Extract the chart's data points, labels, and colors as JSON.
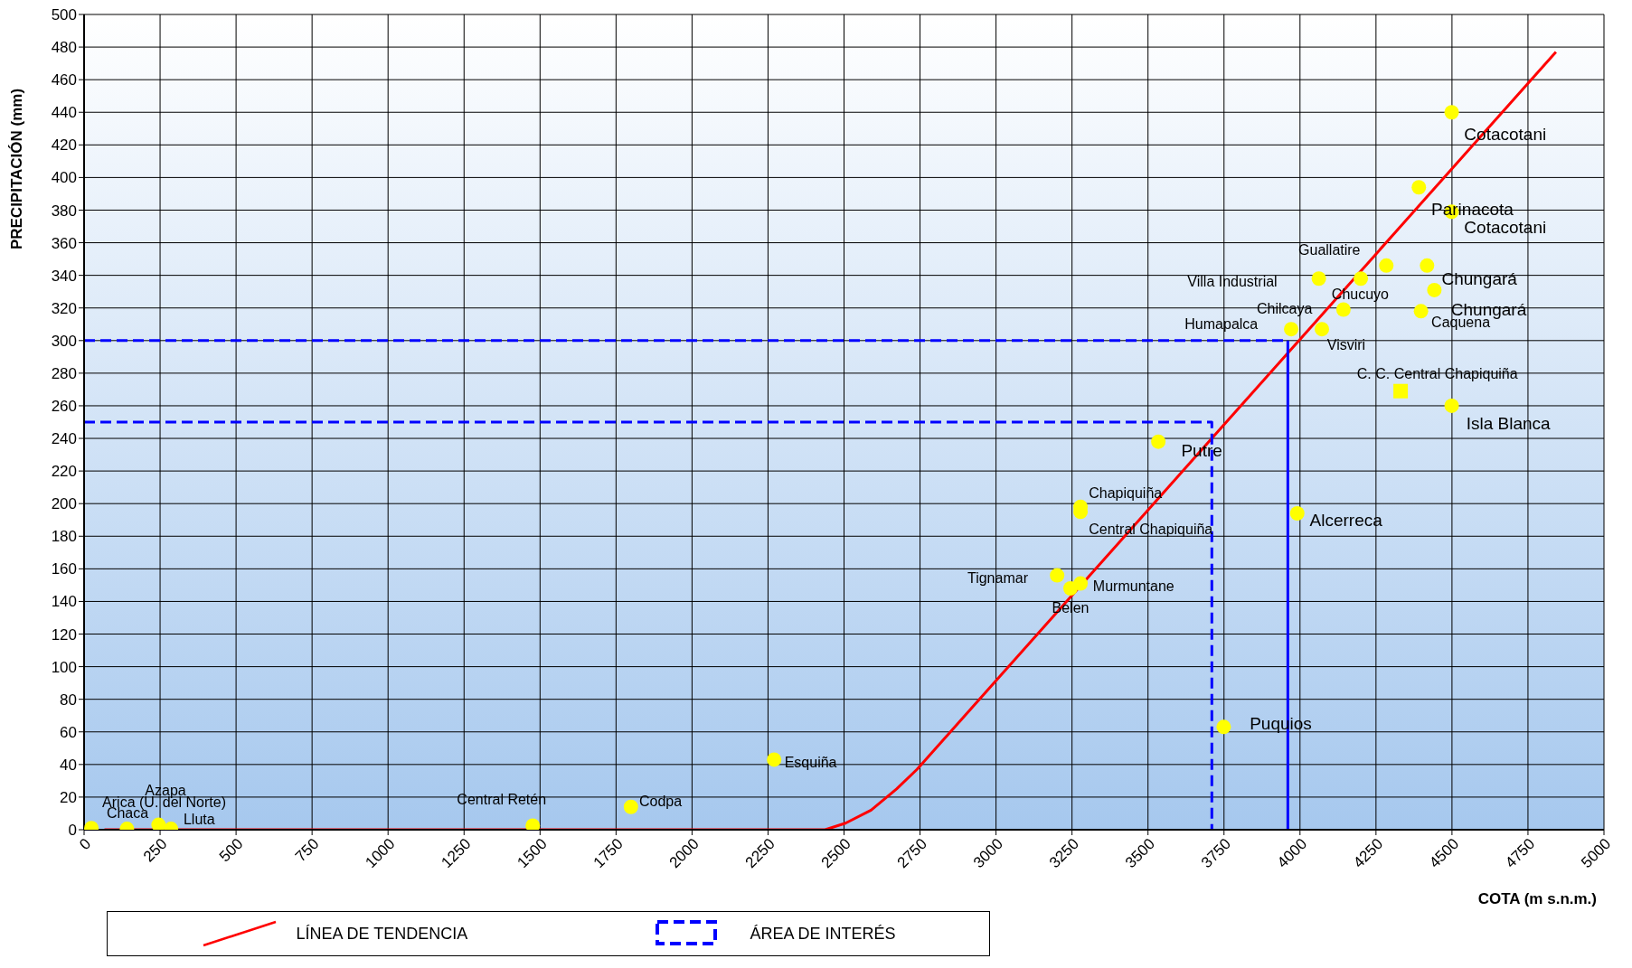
{
  "chart_data": {
    "type": "scatter",
    "xlabel": "COTA (m s.n.m.)",
    "ylabel": "PRECIPITACIÓN (mm)",
    "xlim": [
      0,
      5000
    ],
    "xticks": [
      0,
      250,
      500,
      750,
      1000,
      1250,
      1500,
      1750,
      2000,
      2250,
      2500,
      2750,
      3000,
      3250,
      3500,
      3750,
      4000,
      4250,
      4500,
      4750,
      5000
    ],
    "ylim": [
      0,
      500
    ],
    "yticks": [
      0,
      20,
      40,
      60,
      80,
      100,
      120,
      140,
      160,
      180,
      200,
      220,
      240,
      260,
      280,
      300,
      320,
      340,
      360,
      380,
      400,
      420,
      440,
      460,
      480,
      500
    ],
    "grid": true,
    "legend": "bottom",
    "series": [
      {
        "color": "#ffff00",
        "marker": "circle",
        "x": [
          4499,
          4391,
          4499,
          4284,
          4418,
          4200,
          4062,
          4442,
          4143,
          4398,
          3971,
          4072,
          4499,
          3534,
          3278,
          3278,
          3991,
          3201,
          3278,
          3245,
          3749,
          2270,
          1799,
          1476,
          24,
          141,
          245,
          286
        ],
        "values": [
          440,
          394,
          379,
          346,
          346,
          338,
          338,
          331,
          319,
          318,
          307,
          307,
          260,
          238,
          198,
          195,
          194,
          156,
          151,
          148,
          63,
          43,
          14,
          2.5,
          1,
          0.5,
          3,
          0.5
        ]
      },
      {
        "color": "#ffff00",
        "marker": "square",
        "x": [
          4331
        ],
        "values": [
          269
        ]
      },
      {
        "type": "line",
        "name": "LÍNEA DE TENDENCIA",
        "color": "#ff0000",
        "line_style": "solid",
        "x": [
          67,
          2310,
          2438,
          2505,
          2589,
          2673,
          2740,
          4842
        ],
        "values": [
          0,
          0,
          0,
          4,
          12,
          25,
          37,
          477
        ]
      },
      {
        "type": "line",
        "name": "ÁREA DE INTERÉS",
        "color": "#0000ff",
        "line_style": "dashed",
        "x": [
          0,
          3960
        ],
        "values": [
          300,
          300
        ]
      },
      {
        "type": "line",
        "color": "#0000ff",
        "line_style": "dashed",
        "x": [
          0,
          3710,
          3710
        ],
        "values": [
          250,
          250,
          0
        ]
      },
      {
        "type": "line",
        "color": "#0000ff",
        "line_style": "solid",
        "x": [
          3960,
          3960
        ],
        "values": [
          300,
          0
        ]
      }
    ],
    "annotations": [
      {
        "text": "Cotacotani",
        "x": 4499,
        "y": 440
      },
      {
        "text": "Parinacota",
        "x": 4391,
        "y": 394
      },
      {
        "text": "Cotacotani",
        "x": 4499,
        "y": 379
      },
      {
        "text": "Guallatire",
        "x": 4284,
        "y": 346
      },
      {
        "text": "Chungará",
        "x": 4418,
        "y": 346
      },
      {
        "text": "Chucuyo",
        "x": 4200,
        "y": 338
      },
      {
        "text": "Villa Industrial",
        "x": 4062,
        "y": 338
      },
      {
        "text": "Chungará",
        "x": 4442,
        "y": 331
      },
      {
        "text": "Chilcaya",
        "x": 4143,
        "y": 319
      },
      {
        "text": "Caquena",
        "x": 4398,
        "y": 318
      },
      {
        "text": "Humapalca",
        "x": 3971,
        "y": 307
      },
      {
        "text": "Visviri",
        "x": 4072,
        "y": 307
      },
      {
        "text": "C. C. Central Chapiquiña",
        "x": 4331,
        "y": 269
      },
      {
        "text": "Isla Blanca",
        "x": 4499,
        "y": 260
      },
      {
        "text": "Putre",
        "x": 3534,
        "y": 238
      },
      {
        "text": "Chapiquiña",
        "x": 3278,
        "y": 198
      },
      {
        "text": "Central Chapiquiña",
        "x": 3278,
        "y": 195
      },
      {
        "text": "Alcerreca",
        "x": 3991,
        "y": 194
      },
      {
        "text": "Tignamar",
        "x": 3201,
        "y": 156
      },
      {
        "text": "Murmuntane",
        "x": 3278,
        "y": 151
      },
      {
        "text": "Belen",
        "x": 3245,
        "y": 148
      },
      {
        "text": "Puquios",
        "x": 3749,
        "y": 63
      },
      {
        "text": "Esquiña",
        "x": 2270,
        "y": 43
      },
      {
        "text": "Codpa",
        "x": 1799,
        "y": 14
      },
      {
        "text": "Central Retén",
        "x": 1476,
        "y": 2.5
      },
      {
        "text": "Arica (U. del Norte)",
        "x": 24,
        "y": 1
      },
      "Chaca",
      "Azapa",
      {
        "text": "Lluta",
        "x": 286,
        "y": 0.5
      }
    ]
  }
}
